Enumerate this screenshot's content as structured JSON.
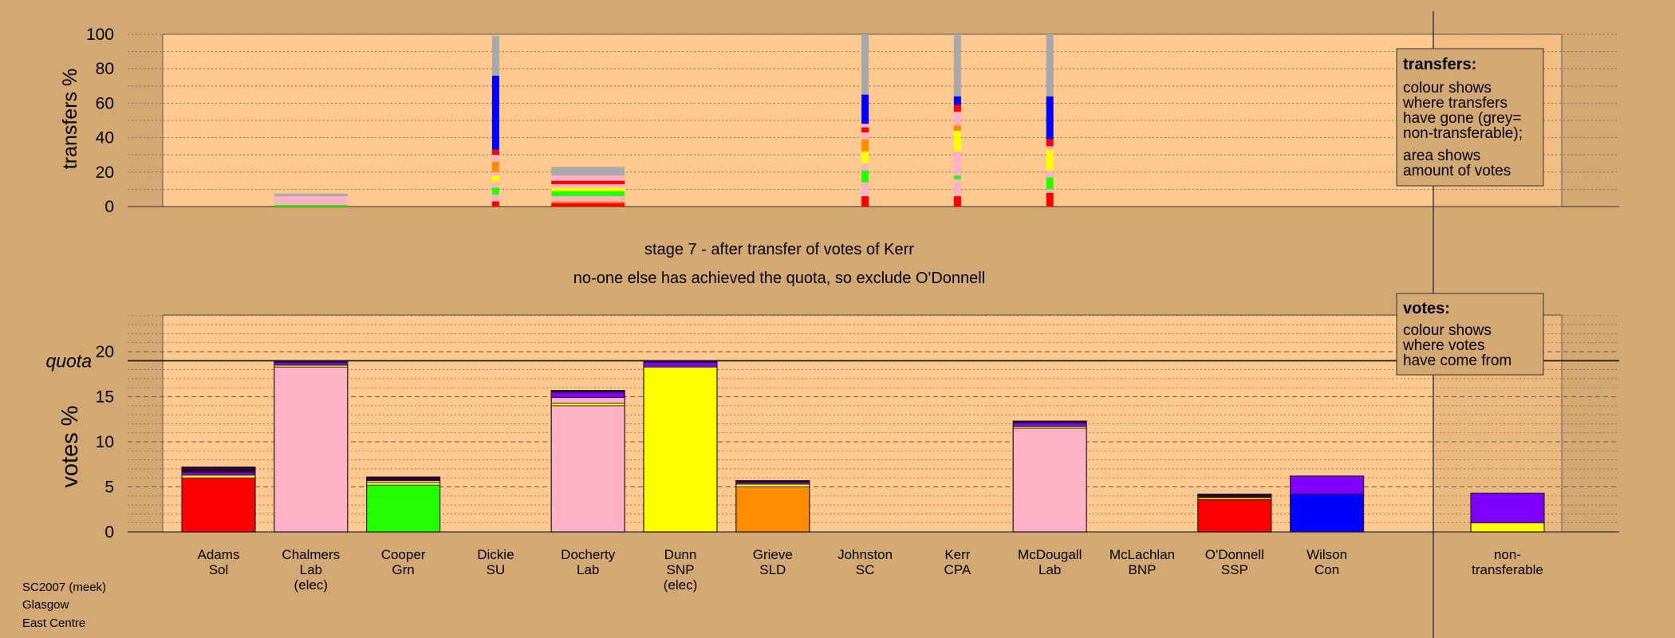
{
  "colors": {
    "background": "#d4a872",
    "panel": "#ffc990",
    "shade": "#c79a62",
    "grey": "#a9a9a9",
    "red": "#ff0000",
    "pink": "#ffb1c8",
    "green": "#22ff00",
    "yellow": "#ffff00",
    "orange": "#ff8c00",
    "blue": "#0000ff",
    "purple": "#8000ff",
    "dark": "#2a0033"
  },
  "chart_data": [
    {
      "type": "bar",
      "role": "transfers",
      "ylabel": "transfers %",
      "ylim": [
        0,
        100
      ],
      "yticks": [
        0,
        20,
        40,
        60,
        80,
        100
      ],
      "grid": "dotted",
      "legend": {
        "title": "transfers:",
        "lines1": [
          "colour shows",
          "where transfers",
          "have gone (grey=",
          "non-transferable);"
        ],
        "lines2": [
          "area shows",
          "amount of votes"
        ]
      },
      "columns": [
        {
          "candidate": "Chalmers",
          "segments": [
            [
              "green",
              1
            ],
            [
              "pink",
              5
            ],
            [
              "grey",
              1.5
            ]
          ]
        },
        {
          "candidate": "Dickie",
          "segments": [
            [
              "red",
              3
            ],
            [
              "pink",
              4
            ],
            [
              "green",
              4
            ],
            [
              "pink",
              3
            ],
            [
              "yellow",
              4
            ],
            [
              "pink",
              2
            ],
            [
              "orange",
              6
            ],
            [
              "pink",
              4
            ],
            [
              "red",
              3
            ],
            [
              "blue",
              43
            ],
            [
              "grey",
              23
            ]
          ]
        },
        {
          "candidate": "Docherty",
          "segments": [
            [
              "red",
              2
            ],
            [
              "orange",
              1
            ],
            [
              "pink",
              3
            ],
            [
              "green",
              3
            ],
            [
              "yellow",
              2
            ],
            [
              "pink",
              2
            ],
            [
              "red",
              2
            ],
            [
              "pink",
              3
            ],
            [
              "grey",
              5
            ]
          ]
        },
        {
          "candidate": "Johnston",
          "segments": [
            [
              "red",
              6
            ],
            [
              "pink",
              8
            ],
            [
              "green",
              7
            ],
            [
              "pink",
              4
            ],
            [
              "yellow",
              7
            ],
            [
              "orange",
              7
            ],
            [
              "pink",
              4
            ],
            [
              "red",
              3
            ],
            [
              "pink",
              2
            ],
            [
              "blue",
              17
            ],
            [
              "grey",
              35
            ]
          ]
        },
        {
          "candidate": "Kerr",
          "segments": [
            [
              "red",
              6
            ],
            [
              "pink",
              10
            ],
            [
              "green",
              2
            ],
            [
              "pink",
              14
            ],
            [
              "yellow",
              12
            ],
            [
              "orange",
              3
            ],
            [
              "pink",
              8
            ],
            [
              "red",
              4
            ],
            [
              "blue",
              5
            ],
            [
              "grey",
              36
            ]
          ]
        },
        {
          "candidate": "McDougall",
          "segments": [
            [
              "red",
              8
            ],
            [
              "pink",
              2
            ],
            [
              "green",
              7
            ],
            [
              "pink",
              4
            ],
            [
              "yellow",
              12
            ],
            [
              "pink",
              2
            ],
            [
              "red",
              4
            ],
            [
              "blue",
              25
            ],
            [
              "grey",
              36
            ]
          ]
        }
      ]
    },
    {
      "type": "bar",
      "role": "votes",
      "ylabel": "votes %",
      "ylim": [
        0,
        24
      ],
      "yticks": [
        0,
        5,
        10,
        15,
        20
      ],
      "quota": 19.0,
      "quota_label": "quota",
      "grid": "dashed",
      "legend": {
        "title": "votes:",
        "lines": [
          "colour shows",
          "where votes",
          "have come from"
        ]
      },
      "candidates": [
        {
          "name": "Adams",
          "party": "Sol",
          "elected": "",
          "segments": [
            [
              "red",
              6.0
            ],
            [
              "yellow",
              0.3
            ],
            [
              "purple",
              0.3
            ],
            [
              "dark",
              0.6
            ]
          ]
        },
        {
          "name": "Chalmers",
          "party": "Lab",
          "elected": "(elec)",
          "segments": [
            [
              "pink",
              18.3
            ],
            [
              "yellow",
              0.2
            ],
            [
              "purple",
              0.3
            ],
            [
              "dark",
              0.2
            ]
          ]
        },
        {
          "name": "Cooper",
          "party": "Grn",
          "elected": "",
          "segments": [
            [
              "green",
              5.2
            ],
            [
              "yellow",
              0.3
            ],
            [
              "pink",
              0.2
            ],
            [
              "dark",
              0.4
            ]
          ]
        },
        {
          "name": "Dickie",
          "party": "SU",
          "elected": "",
          "segments": []
        },
        {
          "name": "Docherty",
          "party": "Lab",
          "elected": "",
          "segments": [
            [
              "pink",
              14.0
            ],
            [
              "yellow",
              0.3
            ],
            [
              "pink",
              0.6
            ],
            [
              "purple",
              0.6
            ],
            [
              "dark",
              0.2
            ]
          ]
        },
        {
          "name": "Dunn",
          "party": "SNP",
          "elected": "(elec)",
          "segments": [
            [
              "yellow",
              18.3
            ],
            [
              "purple",
              0.5
            ],
            [
              "dark",
              0.2
            ]
          ]
        },
        {
          "name": "Grieve",
          "party": "SLD",
          "elected": "",
          "segments": [
            [
              "orange",
              5.0
            ],
            [
              "yellow",
              0.3
            ],
            [
              "purple",
              0.2
            ],
            [
              "dark",
              0.2
            ]
          ]
        },
        {
          "name": "Johnston",
          "party": "SC",
          "elected": "",
          "segments": []
        },
        {
          "name": "Kerr",
          "party": "CPA",
          "elected": "",
          "segments": []
        },
        {
          "name": "McDougall",
          "party": "Lab",
          "elected": "",
          "segments": [
            [
              "pink",
              11.5
            ],
            [
              "yellow",
              0.2
            ],
            [
              "purple",
              0.4
            ],
            [
              "dark",
              0.2
            ]
          ]
        },
        {
          "name": "McLachlan",
          "party": "BNP",
          "elected": "",
          "segments": []
        },
        {
          "name": "O'Donnell",
          "party": "SSP",
          "elected": "",
          "segments": [
            [
              "red",
              3.6
            ],
            [
              "yellow",
              0.2
            ],
            [
              "dark",
              0.4
            ]
          ]
        },
        {
          "name": "Wilson",
          "party": "Con",
          "elected": "",
          "segments": [
            [
              "blue",
              4.2
            ],
            [
              "purple",
              2.0
            ]
          ]
        }
      ],
      "nontransferable": {
        "name": "non-",
        "name2": "transferable",
        "segments": [
          [
            "yellow",
            1.0
          ],
          [
            "purple",
            3.3
          ]
        ]
      }
    }
  ],
  "titles": {
    "stage": "stage 7 - after transfer of votes of Kerr",
    "message": "no-one else has achieved the quota, so exclude O'Donnell"
  },
  "footer": {
    "line1": "SC2007 (meek)",
    "line2": "Glasgow",
    "line3": "East Centre"
  }
}
